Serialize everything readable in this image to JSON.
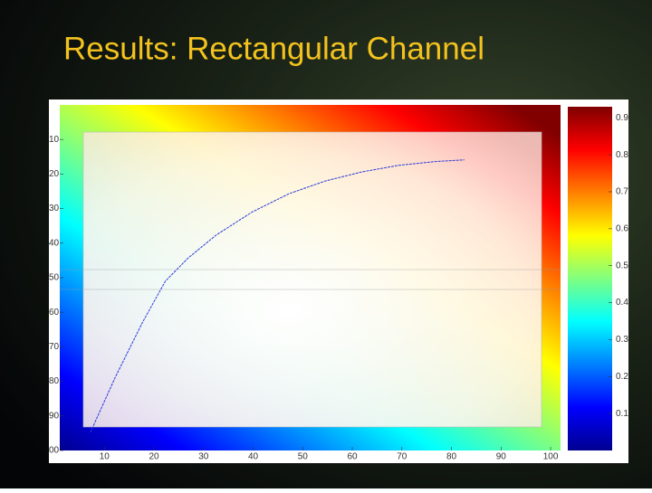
{
  "chart_data": {
    "type": "line",
    "title": "Results: Rectangular Channel",
    "colormap": "jet",
    "xlim": [
      1,
      102
    ],
    "xticks": [
      10,
      20,
      30,
      40,
      50,
      60,
      70,
      80,
      90,
      100
    ],
    "ylim": [
      0,
      100
    ],
    "y_inverted": true,
    "yticks": [
      10,
      20,
      30,
      40,
      50,
      60,
      70,
      80,
      90,
      {
        "value": 100,
        "label": "00"
      }
    ],
    "colorbar": {
      "lim": [
        0,
        0.93
      ],
      "ticks": [
        0.1,
        0.2,
        0.3,
        0.4,
        0.5,
        0.6,
        0.7,
        0.8,
        0.9
      ]
    },
    "series": [
      {
        "color": "#2a3bd6",
        "x": [
          7.2,
          12.2,
          17.7,
          22.3,
          26.9,
          32.5,
          39.8,
          47.2,
          54.6,
          61.9,
          69.3,
          76.7,
          82.6
        ],
        "values": [
          94.7,
          78.8,
          62.9,
          51.0,
          44.3,
          37.7,
          31.0,
          25.7,
          22.0,
          19.4,
          17.5,
          16.4,
          15.9
        ]
      }
    ]
  }
}
